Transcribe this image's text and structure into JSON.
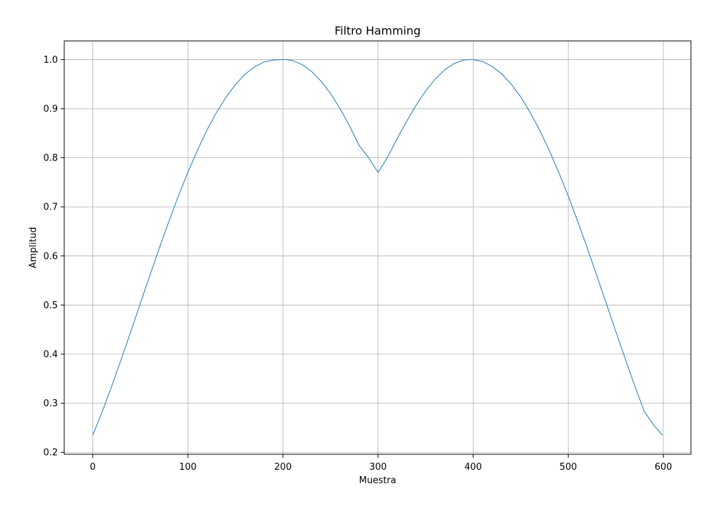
{
  "chart_data": {
    "type": "line",
    "title": "Filtro Hamming",
    "xlabel": "Muestra",
    "ylabel": "Amplitud",
    "xlim": [
      -30,
      629
    ],
    "ylim": [
      0.196,
      1.038
    ],
    "xticks": [
      0,
      100,
      200,
      300,
      400,
      500,
      600
    ],
    "yticks": [
      0.2,
      0.3,
      0.4,
      0.5,
      0.6,
      0.7,
      0.8,
      0.9,
      1.0
    ],
    "ytick_labels": [
      "0.2",
      "0.3",
      "0.4",
      "0.5",
      "0.6",
      "0.7",
      "0.8",
      "0.9",
      "1.0"
    ],
    "grid": true,
    "colors": {
      "line": "#1f77b4",
      "grid": "#b0b0b0",
      "axes": "#000000"
    },
    "series": [
      {
        "x": [
          0,
          10,
          20,
          30,
          40,
          50,
          60,
          70,
          80,
          90,
          100,
          110,
          120,
          130,
          140,
          150,
          160,
          170,
          180,
          190,
          200,
          203,
          210,
          220,
          230,
          240,
          250,
          260,
          270,
          280,
          290,
          300,
          310,
          320,
          330,
          340,
          350,
          360,
          370,
          380,
          390,
          396,
          400,
          410,
          420,
          430,
          440,
          450,
          460,
          470,
          480,
          490,
          500,
          510,
          520,
          530,
          540,
          550,
          560,
          570,
          580,
          590,
          599
        ],
        "y": [
          0.235,
          0.283,
          0.335,
          0.39,
          0.446,
          0.503,
          0.56,
          0.616,
          0.67,
          0.722,
          0.77,
          0.815,
          0.856,
          0.892,
          0.923,
          0.949,
          0.97,
          0.985,
          0.995,
          0.999,
          1.0,
          1.0,
          0.998,
          0.99,
          0.976,
          0.956,
          0.931,
          0.9,
          0.865,
          0.825,
          0.8,
          0.77,
          0.801,
          0.839,
          0.874,
          0.907,
          0.936,
          0.96,
          0.979,
          0.992,
          0.999,
          1.0,
          1.0,
          0.996,
          0.986,
          0.971,
          0.95,
          0.924,
          0.892,
          0.856,
          0.815,
          0.77,
          0.722,
          0.67,
          0.616,
          0.56,
          0.503,
          0.446,
          0.39,
          0.335,
          0.283,
          0.255,
          0.235
        ]
      }
    ]
  }
}
